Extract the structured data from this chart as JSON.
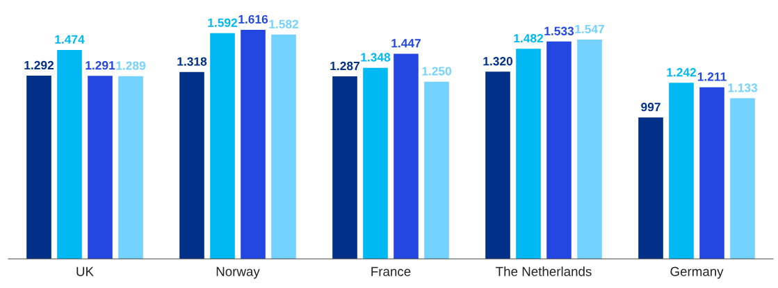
{
  "chart_data": {
    "type": "bar",
    "categories": [
      "UK",
      "Norway",
      "France",
      "The Netherlands",
      "Germany"
    ],
    "series": [
      {
        "color": "#003087",
        "values": [
          1292,
          1318,
          1287,
          1320,
          997
        ],
        "value_labels": [
          "1.292",
          "1.318",
          "1.287",
          "1.320",
          "997"
        ]
      },
      {
        "color": "#00b9f2",
        "values": [
          1474,
          1592,
          1348,
          1482,
          1242
        ],
        "value_labels": [
          "1.474",
          "1.592",
          "1.348",
          "1.482",
          "1.242"
        ]
      },
      {
        "color": "#2347e0",
        "values": [
          1291,
          1616,
          1447,
          1533,
          1211
        ],
        "value_labels": [
          "1.291",
          "1.616",
          "1.447",
          "1.533",
          "1.211"
        ]
      },
      {
        "color": "#73d2ff",
        "values": [
          1289,
          1582,
          1250,
          1547,
          1133
        ],
        "value_labels": [
          "1.289",
          "1.582",
          "1.250",
          "1.547",
          "1.133"
        ]
      }
    ],
    "tick_labels": "x"
  }
}
